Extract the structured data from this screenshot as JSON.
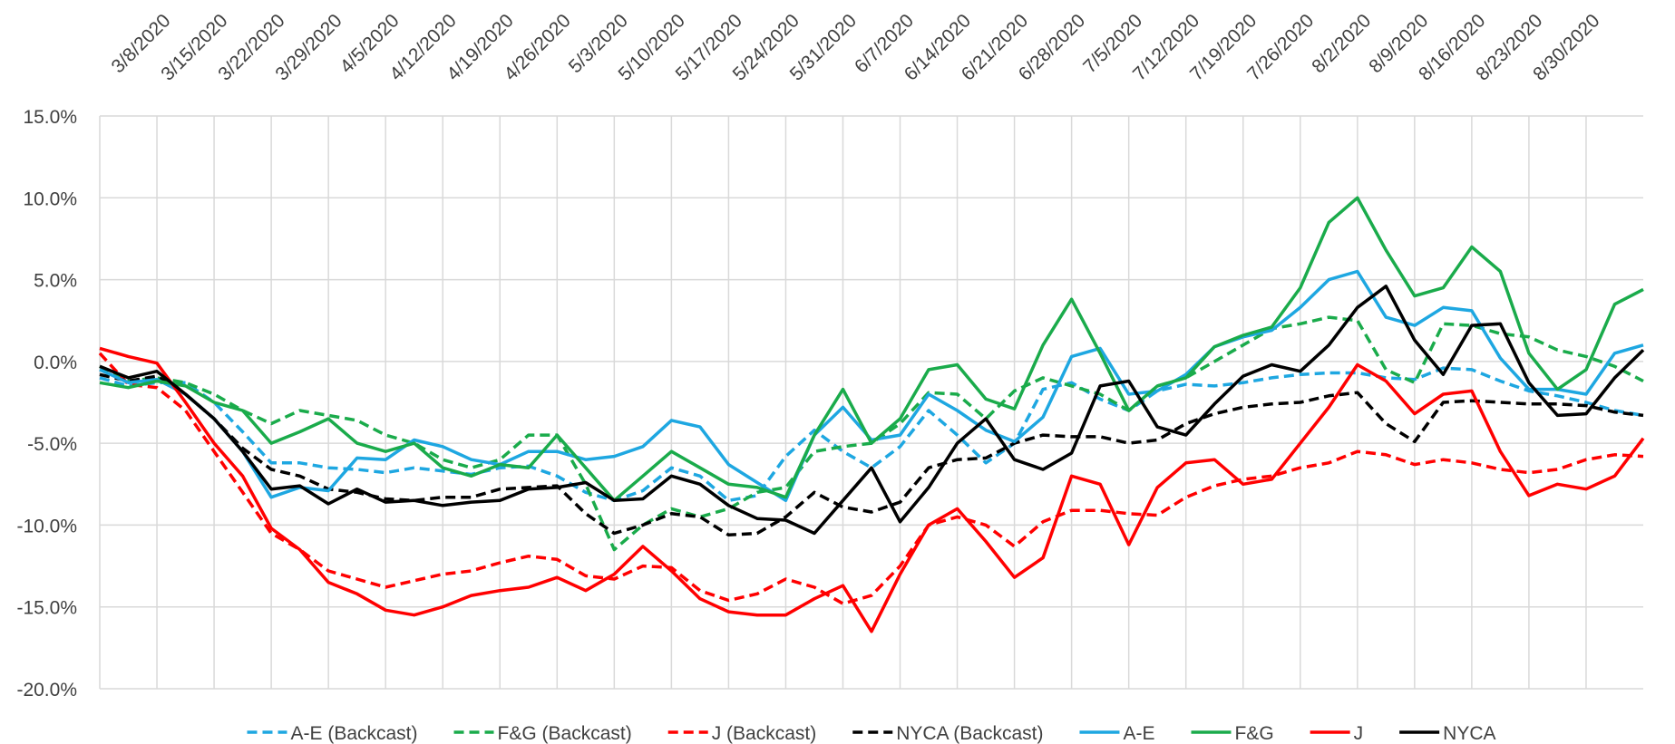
{
  "chart_data": {
    "type": "line",
    "categories": [
      null,
      null,
      "3/8/2020",
      null,
      "3/15/2020",
      null,
      "3/22/2020",
      null,
      "3/29/2020",
      null,
      "4/5/2020",
      null,
      "4/12/2020",
      null,
      "4/19/2020",
      null,
      "4/26/2020",
      null,
      "5/3/2020",
      null,
      "5/10/2020",
      null,
      "5/17/2020",
      null,
      "5/24/2020",
      null,
      "5/31/2020",
      null,
      "6/7/2020",
      null,
      "6/14/2020",
      null,
      "6/21/2020",
      null,
      "6/28/2020",
      null,
      "7/5/2020",
      null,
      "7/12/2020",
      null,
      "7/19/2020",
      null,
      "7/26/2020",
      null,
      "8/2/2020",
      null,
      "8/9/2020",
      null,
      "8/16/2020",
      null,
      "8/23/2020",
      null,
      "8/30/2020",
      null,
      null
    ],
    "ylim": [
      -20,
      15
    ],
    "yticks": [
      {
        "value": -20,
        "label": "-20.0%"
      },
      {
        "value": -15,
        "label": "-15.0%"
      },
      {
        "value": -10,
        "label": "-10.0%"
      },
      {
        "value": -5,
        "label": "-5.0%"
      },
      {
        "value": 0,
        "label": "0.0%"
      },
      {
        "value": 5,
        "label": "5.0%"
      },
      {
        "value": 10,
        "label": "10.0%"
      },
      {
        "value": 15,
        "label": "15.0%"
      }
    ],
    "grid": true,
    "legend": "bottom",
    "series": [
      {
        "name": "A-E (Backcast)",
        "color": "#1ea7e1",
        "line_style": "dashed",
        "values": [
          -1.0,
          -1.5,
          -1.3,
          -1.3,
          -2.5,
          -4.3,
          -6.2,
          -6.2,
          -6.5,
          -6.6,
          -6.8,
          -6.5,
          -6.7,
          -6.9,
          -6.5,
          -6.4,
          -7.0,
          -8.0,
          -8.5,
          -7.9,
          -6.5,
          -7.0,
          -8.5,
          -8.2,
          -5.8,
          -4.2,
          -5.5,
          -6.5,
          -5.2,
          -3.0,
          -4.5,
          -6.2,
          -5.0,
          -1.7,
          -1.3,
          -2.3,
          -3.0,
          -1.8,
          -1.4,
          -1.5,
          -1.3,
          -1.0,
          -0.8,
          -0.7,
          -0.7,
          -1.0,
          -1.1,
          -0.4,
          -0.5,
          -1.2,
          -1.8,
          -2.1,
          -2.5,
          -3.0,
          -3.3
        ]
      },
      {
        "name": "F&G (Backcast)",
        "color": "#1aab4b",
        "line_style": "dashed",
        "values": [
          -0.3,
          -1.2,
          -1.0,
          -1.3,
          -2.0,
          -3.0,
          -3.8,
          -3.0,
          -3.3,
          -3.6,
          -4.5,
          -5.0,
          -6.0,
          -6.5,
          -6.0,
          -4.5,
          -4.5,
          -7.5,
          -11.5,
          -10.0,
          -9.0,
          -9.5,
          -9.0,
          -8.0,
          -7.7,
          -5.5,
          -5.2,
          -5.0,
          -3.8,
          -1.9,
          -2.0,
          -3.5,
          -1.8,
          -1.0,
          -1.5,
          -2.0,
          -3.0,
          -1.5,
          -1.0,
          0.0,
          1.0,
          2.0,
          2.3,
          2.7,
          2.5,
          -0.5,
          -1.3,
          2.3,
          2.2,
          1.7,
          1.5,
          0.7,
          0.3,
          -0.3,
          -1.2
        ]
      },
      {
        "name": "J (Backcast)",
        "color": "#ff0000",
        "line_style": "dashed",
        "values": [
          0.5,
          -1.4,
          -1.6,
          -3.0,
          -5.5,
          -8.0,
          -10.5,
          -11.5,
          -12.8,
          -13.3,
          -13.8,
          -13.4,
          -13.0,
          -12.8,
          -12.3,
          -11.9,
          -12.1,
          -13.1,
          -13.3,
          -12.5,
          -12.6,
          -14.0,
          -14.6,
          -14.2,
          -13.3,
          -13.8,
          -14.8,
          -14.3,
          -12.5,
          -10.0,
          -9.5,
          -10.0,
          -11.3,
          -9.8,
          -9.1,
          -9.1,
          -9.3,
          -9.4,
          -8.3,
          -7.6,
          -7.2,
          -7.0,
          -6.5,
          -6.2,
          -5.5,
          -5.7,
          -6.3,
          -6.0,
          -6.2,
          -6.6,
          -6.8,
          -6.6,
          -6.0,
          -5.7,
          -5.8
        ]
      },
      {
        "name": "NYCA (Backcast)",
        "color": "#000000",
        "line_style": "dashed",
        "values": [
          -0.8,
          -1.2,
          -0.9,
          -2.0,
          -3.5,
          -5.3,
          -6.6,
          -7.0,
          -7.8,
          -8.0,
          -8.4,
          -8.5,
          -8.3,
          -8.3,
          -7.8,
          -7.7,
          -7.6,
          -9.3,
          -10.5,
          -10.0,
          -9.3,
          -9.5,
          -10.6,
          -10.5,
          -9.5,
          -8.0,
          -8.9,
          -9.2,
          -8.6,
          -6.5,
          -6.0,
          -5.9,
          -5.0,
          -4.5,
          -4.6,
          -4.6,
          -5.0,
          -4.8,
          -3.8,
          -3.2,
          -2.8,
          -2.6,
          -2.5,
          -2.1,
          -1.9,
          -3.8,
          -4.9,
          -2.5,
          -2.4,
          -2.5,
          -2.6,
          -2.6,
          -2.7,
          -3.1,
          -3.3
        ]
      },
      {
        "name": "A-E",
        "color": "#1ea7e1",
        "line_style": "solid",
        "values": [
          -0.5,
          -1.3,
          -1.1,
          -2.0,
          -3.5,
          -5.5,
          -8.3,
          -7.7,
          -7.9,
          -5.9,
          -6.0,
          -4.8,
          -5.2,
          -6.0,
          -6.3,
          -5.5,
          -5.5,
          -6.0,
          -5.8,
          -5.2,
          -3.6,
          -4.0,
          -6.3,
          -7.4,
          -8.5,
          -4.5,
          -2.8,
          -4.8,
          -4.5,
          -2.0,
          -3.0,
          -4.2,
          -4.9,
          -3.4,
          0.3,
          0.8,
          -2.0,
          -1.8,
          -0.8,
          0.9,
          1.5,
          1.9,
          3.3,
          5.0,
          5.5,
          2.7,
          2.2,
          3.3,
          3.1,
          0.2,
          -1.7,
          -1.7,
          -2.0,
          0.5,
          1.0
        ]
      },
      {
        "name": "F&G",
        "color": "#1aab4b",
        "line_style": "solid",
        "values": [
          -1.3,
          -1.6,
          -1.2,
          -1.5,
          -2.5,
          -3.0,
          -5.0,
          -4.3,
          -3.5,
          -5.0,
          -5.5,
          -5.0,
          -6.5,
          -7.0,
          -6.3,
          -6.5,
          -4.5,
          -6.5,
          -8.5,
          -7.0,
          -5.5,
          -6.5,
          -7.5,
          -7.7,
          -8.3,
          -4.5,
          -1.7,
          -5.0,
          -3.5,
          -0.5,
          -0.2,
          -2.3,
          -2.9,
          1.0,
          3.8,
          0.5,
          -3.0,
          -1.5,
          -1.0,
          0.9,
          1.6,
          2.1,
          4.5,
          8.5,
          10.0,
          6.8,
          4.0,
          4.5,
          7.0,
          5.5,
          0.5,
          -1.7,
          -0.5,
          3.5,
          4.4
        ]
      },
      {
        "name": "J",
        "color": "#ff0000",
        "line_style": "solid",
        "values": [
          0.8,
          0.3,
          -0.1,
          -2.5,
          -5.0,
          -7.0,
          -10.2,
          -11.5,
          -13.5,
          -14.2,
          -15.2,
          -15.5,
          -15.0,
          -14.3,
          -14.0,
          -13.8,
          -13.2,
          -14.0,
          -13.0,
          -11.3,
          -12.8,
          -14.5,
          -15.3,
          -15.5,
          -15.5,
          -14.5,
          -13.7,
          -16.5,
          -13.0,
          -10.0,
          -9.0,
          -11.0,
          -13.2,
          -12.0,
          -7.0,
          -7.5,
          -11.2,
          -7.7,
          -6.2,
          -6.0,
          -7.5,
          -7.2,
          -5.0,
          -2.8,
          -0.2,
          -1.2,
          -3.2,
          -2.0,
          -1.8,
          -5.5,
          -8.2,
          -7.5,
          -7.8,
          -7.0,
          -4.7
        ]
      },
      {
        "name": "NYCA",
        "color": "#000000",
        "line_style": "solid",
        "values": [
          -0.3,
          -1.0,
          -0.6,
          -2.0,
          -3.5,
          -5.5,
          -7.8,
          -7.6,
          -8.7,
          -7.8,
          -8.6,
          -8.5,
          -8.8,
          -8.6,
          -8.5,
          -7.8,
          -7.7,
          -7.4,
          -8.5,
          -8.4,
          -7.0,
          -7.5,
          -8.8,
          -9.6,
          -9.7,
          -10.5,
          -8.5,
          -6.5,
          -9.8,
          -7.7,
          -5.0,
          -3.5,
          -6.0,
          -6.6,
          -5.6,
          -1.5,
          -1.2,
          -4.0,
          -4.5,
          -2.6,
          -0.9,
          -0.2,
          -0.6,
          1.0,
          3.3,
          4.6,
          1.3,
          -0.8,
          2.2,
          2.3,
          -1.3,
          -3.3,
          -3.2,
          -1.0,
          0.7
        ]
      }
    ]
  }
}
